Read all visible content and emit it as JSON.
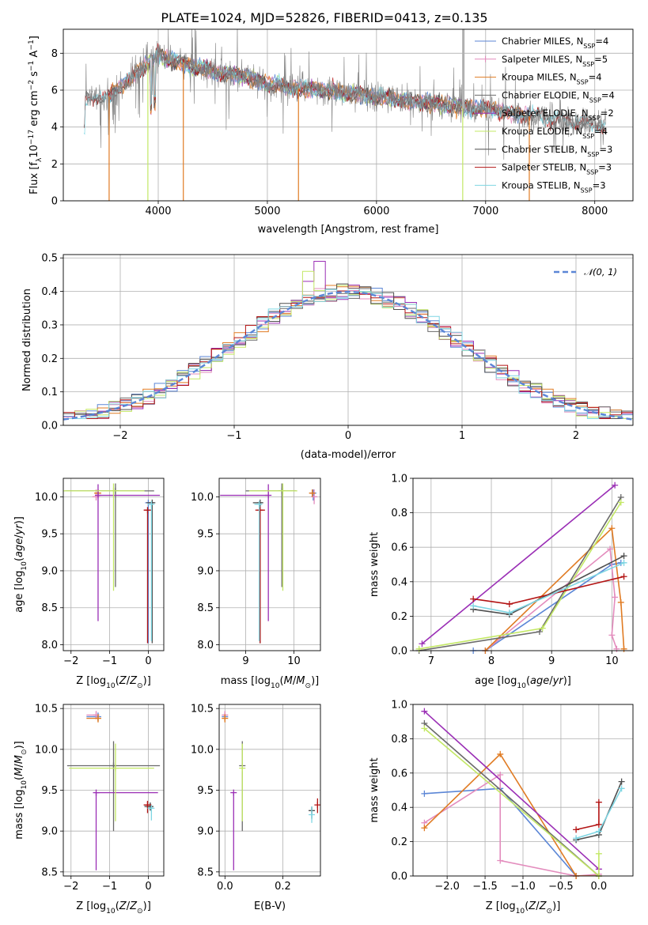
{
  "figure_title": "PLATE=1024, MJD=52826, FIBERID=0413, z=0.135",
  "colors": {
    "Chabrier MILES": "#5b86d6",
    "Salpeter MILES": "#e38cbd",
    "Kroupa MILES": "#e07b23",
    "Chabrier ELODIE": "#6a6a6a",
    "Salpeter ELODIE": "#9a2eb5",
    "Kroupa ELODIE": "#c3e865",
    "Chabrier STELIB": "#4f4f4f",
    "Salpeter STELIB": "#b31414",
    "Kroupa STELIB": "#7fd6e3",
    "gauss": "#5b86d6"
  },
  "chart_data": [
    {
      "id": "spectrum",
      "type": "line",
      "title": "PLATE=1024, MJD=52826, FIBERID=0413, z=0.135",
      "xlabel": "wavelength [Angstrom, rest frame]",
      "ylabel": "Flux [f_λ 10⁻¹⁷ erg cm⁻² s⁻¹ A⁻¹]",
      "xlim": [
        3130,
        8350
      ],
      "ylim": [
        0,
        9.3
      ],
      "xticks": [
        "4000",
        "5000",
        "6000",
        "7000",
        "8000"
      ],
      "yticks": [
        "0",
        "2",
        "4",
        "6",
        "8"
      ],
      "legend_position": "upper right",
      "data_continuum": [
        [
          3330,
          5.6
        ],
        [
          3400,
          5.7
        ],
        [
          3500,
          5.4
        ],
        [
          3600,
          5.9
        ],
        [
          3700,
          6.4
        ],
        [
          3800,
          6.9
        ],
        [
          3900,
          7.4
        ],
        [
          4000,
          7.9
        ],
        [
          4100,
          7.7
        ],
        [
          4200,
          7.5
        ],
        [
          4300,
          7.3
        ],
        [
          4400,
          7.2
        ],
        [
          4500,
          7.0
        ],
        [
          4600,
          6.9
        ],
        [
          4700,
          6.8
        ],
        [
          4800,
          6.8
        ],
        [
          4900,
          6.5
        ],
        [
          5000,
          6.3
        ],
        [
          5100,
          6.3
        ],
        [
          5200,
          6.1
        ],
        [
          5300,
          6.1
        ],
        [
          5400,
          6.0
        ],
        [
          5500,
          6.0
        ],
        [
          5600,
          5.9
        ],
        [
          5700,
          5.8
        ],
        [
          5800,
          5.8
        ],
        [
          5900,
          5.7
        ],
        [
          6000,
          5.6
        ],
        [
          6100,
          5.6
        ],
        [
          6200,
          5.5
        ],
        [
          6300,
          5.4
        ],
        [
          6400,
          5.4
        ],
        [
          6500,
          5.3
        ],
        [
          6600,
          5.2
        ],
        [
          6700,
          5.2
        ],
        [
          6800,
          5.1
        ],
        [
          6900,
          5.0
        ],
        [
          7000,
          5.0
        ],
        [
          7100,
          4.9
        ],
        [
          7200,
          4.8
        ],
        [
          7300,
          4.7
        ],
        [
          7400,
          4.6
        ],
        [
          7500,
          4.6
        ],
        [
          7600,
          4.5
        ],
        [
          7700,
          4.4
        ],
        [
          7800,
          4.3
        ],
        [
          7900,
          4.2
        ],
        [
          8000,
          4.1
        ],
        [
          8100,
          4.0
        ]
      ],
      "series": [
        {
          "name": "Chabrier MILES",
          "n_ssp": "4"
        },
        {
          "name": "Salpeter MILES",
          "n_ssp": "5"
        },
        {
          "name": "Kroupa MILES",
          "n_ssp": "4"
        },
        {
          "name": "Chabrier ELODIE",
          "n_ssp": "4"
        },
        {
          "name": "Salpeter ELODIE",
          "n_ssp": "2"
        },
        {
          "name": "Kroupa ELODIE",
          "n_ssp": "4"
        },
        {
          "name": "Chabrier STELIB",
          "n_ssp": "3"
        },
        {
          "name": "Salpeter STELIB",
          "n_ssp": "3"
        },
        {
          "name": "Kroupa STELIB",
          "n_ssp": "3"
        }
      ]
    },
    {
      "id": "residuals",
      "type": "line",
      "xlabel": "(data-model)/error",
      "ylabel": "Normed distribution",
      "xlim": [
        -2.5,
        2.5
      ],
      "ylim": [
        0,
        0.51
      ],
      "xticks": [
        "−2",
        "−1",
        "0",
        "1",
        "2"
      ],
      "yticks": [
        "0.0",
        "0.1",
        "0.2",
        "0.3",
        "0.4",
        "0.5"
      ],
      "legend": [
        "𝒩(0, 1)"
      ],
      "legend_position": "upper right",
      "bin_width": 0.1,
      "bin_start": -2.5
    },
    {
      "id": "age_vs_Z",
      "type": "scatter",
      "xlabel": "Z [log10(Z/Z⊙)]",
      "ylabel": "age [log10(age/yr)]",
      "xlim": [
        -2.2,
        0.4
      ],
      "ylim": [
        7.92,
        10.25
      ],
      "xticks": [
        "−2",
        "−1",
        "0"
      ],
      "yticks": [
        "8.0",
        "8.5",
        "9.0",
        "9.5",
        "10.0"
      ],
      "points": [
        {
          "series": "Chabrier MILES",
          "x": 0.0,
          "y": 9.92,
          "xerr": [
            0.0,
            0.15
          ],
          "yerr": [
            1.9,
            0.0
          ]
        },
        {
          "series": "Salpeter MILES",
          "x": -1.35,
          "y": 10.0,
          "xerr": [
            0.1,
            0.05
          ],
          "yerr": [
            0.05,
            0.1
          ]
        },
        {
          "series": "Kroupa MILES",
          "x": -1.3,
          "y": 10.05,
          "xerr": [
            0.1,
            0.05
          ],
          "yerr": [
            0.05,
            0.05
          ]
        },
        {
          "series": "Chabrier ELODIE",
          "x": -0.85,
          "y": 10.08,
          "xerr": [
            1.3,
            1.0
          ],
          "yerr": [
            1.3,
            0.1
          ]
        },
        {
          "series": "Salpeter ELODIE",
          "x": -1.3,
          "y": 10.02,
          "xerr": [
            0.0,
            1.6
          ],
          "yerr": [
            1.7,
            0.15
          ]
        },
        {
          "series": "Kroupa ELODIE",
          "x": -0.9,
          "y": 10.08,
          "xerr": [
            1.3,
            0.8
          ],
          "yerr": [
            1.35,
            0.1
          ]
        },
        {
          "series": "Chabrier STELIB",
          "x": 0.1,
          "y": 9.92,
          "xerr": [
            0.15,
            0.05
          ],
          "yerr": [
            1.9,
            0.0
          ]
        },
        {
          "series": "Salpeter STELIB",
          "x": -0.02,
          "y": 9.82,
          "xerr": [
            0.1,
            0.1
          ],
          "yerr": [
            1.8,
            0.0
          ]
        },
        {
          "series": "Kroupa STELIB",
          "x": 0.08,
          "y": 9.9,
          "xerr": [
            0.1,
            0.05
          ],
          "yerr": [
            1.85,
            0.0
          ]
        }
      ]
    },
    {
      "id": "age_vs_mass",
      "type": "scatter",
      "xlabel": "mass [log10(M/M⊙)]",
      "xlim": [
        8.45,
        10.55
      ],
      "ylim": [
        7.92,
        10.25
      ],
      "xticks": [
        "9",
        "10"
      ],
      "yticks": [
        "8.0",
        "8.5",
        "9.0",
        "9.5",
        "10.0"
      ],
      "points": [
        {
          "series": "Chabrier MILES",
          "x": 10.4,
          "y": 10.05,
          "xerr": [
            0.05,
            0.05
          ],
          "yerr": [
            0.1,
            0.05
          ]
        },
        {
          "series": "Salpeter MILES",
          "x": 10.42,
          "y": 10.0,
          "xerr": [
            0.05,
            0.05
          ],
          "yerr": [
            0.1,
            0.1
          ]
        },
        {
          "series": "Kroupa MILES",
          "x": 10.38,
          "y": 10.05,
          "xerr": [
            0.05,
            0.05
          ],
          "yerr": [
            0.05,
            0.05
          ]
        },
        {
          "series": "Chabrier ELODIE",
          "x": 9.75,
          "y": 10.08,
          "xerr": [
            0.75,
            0.3
          ],
          "yerr": [
            1.3,
            0.1
          ]
        },
        {
          "series": "Salpeter ELODIE",
          "x": 9.47,
          "y": 10.02,
          "xerr": [
            1.0,
            0.0
          ],
          "yerr": [
            1.7,
            0.15
          ]
        },
        {
          "series": "Kroupa ELODIE",
          "x": 9.77,
          "y": 10.08,
          "xerr": [
            0.7,
            0.3
          ],
          "yerr": [
            1.35,
            0.1
          ]
        },
        {
          "series": "Chabrier STELIB",
          "x": 9.3,
          "y": 9.92,
          "xerr": [
            0.15,
            0.05
          ],
          "yerr": [
            1.9,
            0.0
          ]
        },
        {
          "series": "Salpeter STELIB",
          "x": 9.3,
          "y": 9.82,
          "xerr": [
            0.1,
            0.1
          ],
          "yerr": [
            1.8,
            0.0
          ]
        },
        {
          "series": "Kroupa STELIB",
          "x": 9.28,
          "y": 9.9,
          "xerr": [
            0.1,
            0.05
          ],
          "yerr": [
            1.85,
            0.0
          ]
        }
      ]
    },
    {
      "id": "weight_vs_age",
      "type": "line",
      "xlabel": "age [log10(age/yr)]",
      "ylabel": "mass weight",
      "xlim": [
        6.7,
        10.35
      ],
      "ylim": [
        0,
        1
      ],
      "xticks": [
        "7",
        "8",
        "9",
        "10"
      ],
      "yticks": [
        "0.0",
        "0.2",
        "0.4",
        "0.6",
        "0.8",
        "1.0"
      ],
      "series": [
        {
          "name": "Chabrier MILES",
          "x": [
            7.7,
            7.9,
            10.0,
            10.15
          ],
          "y": [
            0.0,
            0.0,
            0.5,
            0.51
          ]
        },
        {
          "name": "Salpeter MILES",
          "x": [
            7.9,
            9.97,
            10.05,
            10.0,
            10.08
          ],
          "y": [
            0.0,
            0.59,
            0.31,
            0.09,
            0.01
          ]
        },
        {
          "name": "Kroupa MILES",
          "x": [
            7.9,
            10.0,
            10.15,
            10.2
          ],
          "y": [
            0.0,
            0.71,
            0.28,
            0.01
          ]
        },
        {
          "name": "Chabrier ELODIE",
          "x": [
            6.8,
            8.8,
            10.15
          ],
          "y": [
            0.0,
            0.11,
            0.89
          ]
        },
        {
          "name": "Salpeter ELODIE",
          "x": [
            6.85,
            10.05
          ],
          "y": [
            0.04,
            0.96
          ]
        },
        {
          "name": "Kroupa ELODIE",
          "x": [
            6.8,
            8.85,
            10.15
          ],
          "y": [
            0.01,
            0.13,
            0.86
          ]
        },
        {
          "name": "Chabrier STELIB",
          "x": [
            7.7,
            8.3,
            10.2
          ],
          "y": [
            0.24,
            0.21,
            0.55
          ]
        },
        {
          "name": "Salpeter STELIB",
          "x": [
            7.7,
            8.3,
            10.2
          ],
          "y": [
            0.3,
            0.27,
            0.43
          ]
        },
        {
          "name": "Kroupa STELIB",
          "x": [
            7.7,
            8.3,
            10.2
          ],
          "y": [
            0.26,
            0.22,
            0.51
          ]
        }
      ]
    },
    {
      "id": "mass_vs_Z",
      "type": "scatter",
      "xlabel": "Z [log10(Z/Z⊙)]",
      "ylabel": "mass [log10(M/M⊙)]",
      "xlim": [
        -2.2,
        0.4
      ],
      "ylim": [
        8.45,
        10.55
      ],
      "xticks": [
        "−2",
        "−1",
        "0"
      ],
      "yticks": [
        "8.5",
        "9.0",
        "9.5",
        "10.0",
        "10.5"
      ],
      "points": [
        {
          "series": "Chabrier MILES",
          "x": -1.3,
          "y": 10.4,
          "xerr": [
            0.3,
            0.0
          ],
          "yerr": [
            0.05,
            0.05
          ]
        },
        {
          "series": "Salpeter MILES",
          "x": -1.35,
          "y": 10.42,
          "xerr": [
            0.25,
            0.0
          ],
          "yerr": [
            0.05,
            0.05
          ]
        },
        {
          "series": "Kroupa MILES",
          "x": -1.3,
          "y": 10.38,
          "xerr": [
            0.3,
            0.0
          ],
          "yerr": [
            0.05,
            0.05
          ]
        },
        {
          "series": "Chabrier ELODIE",
          "x": -0.9,
          "y": 9.8,
          "xerr": [
            1.2,
            1.2
          ],
          "yerr": [
            0.8,
            0.3
          ]
        },
        {
          "series": "Salpeter ELODIE",
          "x": -1.35,
          "y": 9.47,
          "xerr": [
            0.0,
            1.6
          ],
          "yerr": [
            0.95,
            0.0
          ]
        },
        {
          "series": "Kroupa ELODIE",
          "x": -0.85,
          "y": 9.77,
          "xerr": [
            1.2,
            1.0
          ],
          "yerr": [
            0.65,
            0.3
          ]
        },
        {
          "series": "Chabrier STELIB",
          "x": 0.05,
          "y": 9.3,
          "xerr": [
            0.15,
            0.05
          ],
          "yerr": [
            0.05,
            0.05
          ]
        },
        {
          "series": "Salpeter STELIB",
          "x": -0.02,
          "y": 9.32,
          "xerr": [
            0.1,
            0.1
          ],
          "yerr": [
            0.1,
            0.05
          ]
        },
        {
          "series": "Kroupa STELIB",
          "x": 0.08,
          "y": 9.28,
          "xerr": [
            0.1,
            0.05
          ],
          "yerr": [
            0.15,
            0.0
          ]
        }
      ]
    },
    {
      "id": "mass_vs_ebv",
      "type": "scatter",
      "xlabel": "E(B-V)",
      "xlim": [
        -0.02,
        0.33
      ],
      "ylim": [
        8.45,
        10.55
      ],
      "xticks": [
        "0.0",
        "0.2"
      ],
      "yticks": [
        "8.5",
        "9.0",
        "9.5",
        "10.0",
        "10.5"
      ],
      "points": [
        {
          "series": "Chabrier MILES",
          "x": 0.0,
          "y": 10.4,
          "xerr": [
            0.0,
            0.0
          ],
          "yerr": [
            0.05,
            0.05
          ]
        },
        {
          "series": "Salpeter MILES",
          "x": 0.0,
          "y": 10.42,
          "xerr": [
            0.0,
            0.0
          ],
          "yerr": [
            0.05,
            0.05
          ]
        },
        {
          "series": "Kroupa MILES",
          "x": 0.0,
          "y": 10.38,
          "xerr": [
            0.0,
            0.0
          ],
          "yerr": [
            0.05,
            0.05
          ]
        },
        {
          "series": "Chabrier ELODIE",
          "x": 0.06,
          "y": 9.8,
          "xerr": [
            0.0,
            0.0
          ],
          "yerr": [
            0.8,
            0.3
          ]
        },
        {
          "series": "Salpeter ELODIE",
          "x": 0.03,
          "y": 9.47,
          "xerr": [
            0.0,
            0.0
          ],
          "yerr": [
            0.95,
            0.0
          ]
        },
        {
          "series": "Kroupa ELODIE",
          "x": 0.06,
          "y": 9.77,
          "xerr": [
            0.0,
            0.0
          ],
          "yerr": [
            0.65,
            0.3
          ]
        },
        {
          "series": "Chabrier STELIB",
          "x": 0.3,
          "y": 9.25,
          "xerr": [
            0.0,
            0.0
          ],
          "yerr": [
            0.1,
            0.05
          ]
        },
        {
          "series": "Salpeter STELIB",
          "x": 0.32,
          "y": 9.32,
          "xerr": [
            0.0,
            0.0
          ],
          "yerr": [
            0.1,
            0.08
          ]
        },
        {
          "series": "Kroupa STELIB",
          "x": 0.3,
          "y": 9.2,
          "xerr": [
            0.0,
            0.0
          ],
          "yerr": [
            0.1,
            0.1
          ]
        }
      ]
    },
    {
      "id": "weight_vs_Z",
      "type": "line",
      "xlabel": "Z [log10(Z/Z⊙)]",
      "ylabel": "mass weight",
      "xlim": [
        -2.45,
        0.45
      ],
      "ylim": [
        0,
        1
      ],
      "xticks": [
        "−2.0",
        "−1.5",
        "−1.0",
        "−0.5",
        "0.0"
      ],
      "yticks": [
        "0.0",
        "0.2",
        "0.4",
        "0.6",
        "0.8",
        "1.0"
      ],
      "series": [
        {
          "name": "Chabrier MILES",
          "x": [
            -2.3,
            -1.3,
            -0.3,
            0.0
          ],
          "y": [
            0.48,
            0.51,
            0.0,
            0.0
          ]
        },
        {
          "name": "Salpeter MILES",
          "x": [
            -2.3,
            -1.3,
            -1.3,
            -0.3,
            0.0
          ],
          "y": [
            0.31,
            0.59,
            0.09,
            0.0,
            0.01
          ]
        },
        {
          "name": "Kroupa MILES",
          "x": [
            -2.3,
            -1.3,
            -0.3,
            0.0
          ],
          "y": [
            0.28,
            0.71,
            0.0,
            0.0
          ]
        },
        {
          "name": "Chabrier ELODIE",
          "x": [
            -2.3,
            0.0
          ],
          "y": [
            0.89,
            0.0
          ]
        },
        {
          "name": "Salpeter ELODIE",
          "x": [
            -2.3,
            0.0
          ],
          "y": [
            0.96,
            0.04
          ]
        },
        {
          "name": "Kroupa ELODIE",
          "x": [
            -2.3,
            0.0,
            0.0
          ],
          "y": [
            0.86,
            0.0,
            0.13
          ]
        },
        {
          "name": "Chabrier STELIB",
          "x": [
            -0.3,
            0.0,
            0.3
          ],
          "y": [
            0.21,
            0.24,
            0.55
          ]
        },
        {
          "name": "Salpeter STELIB",
          "x": [
            -0.3,
            0.0,
            0.0
          ],
          "y": [
            0.27,
            0.3,
            0.43
          ]
        },
        {
          "name": "Kroupa STELIB",
          "x": [
            -0.3,
            0.0,
            0.3
          ],
          "y": [
            0.22,
            0.26,
            0.51
          ]
        }
      ]
    }
  ]
}
